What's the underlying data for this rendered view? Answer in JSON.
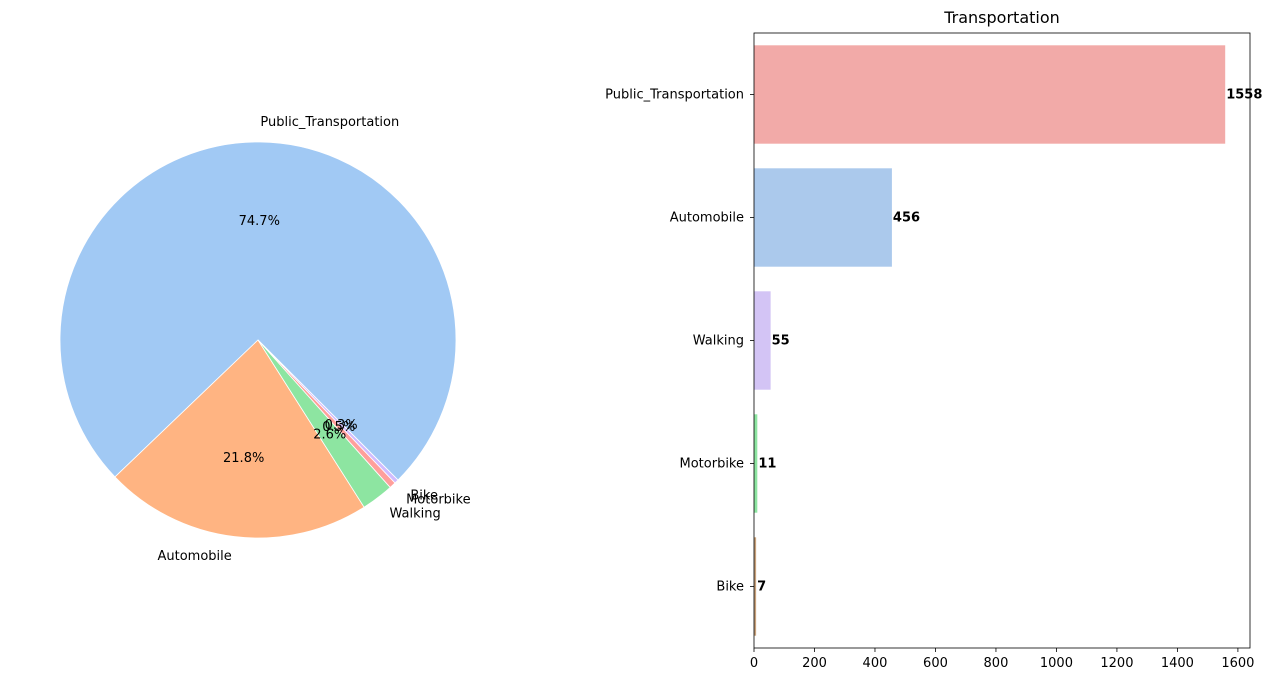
{
  "chart_data": [
    {
      "type": "pie",
      "title": "",
      "labels": [
        "Public_Transportation",
        "Automobile",
        "Walking",
        "Motorbike",
        "Bike"
      ],
      "values": [
        1558,
        456,
        55,
        11,
        7
      ],
      "percent_labels": [
        "74.7%",
        "21.8%",
        "2.6%",
        "0.5%",
        "0.3%"
      ],
      "colors": [
        "#a1c9f4",
        "#ffb482",
        "#8de5a1",
        "#ff9f9b",
        "#d0bbff"
      ],
      "start_angle": 315,
      "direction": "counterclockwise"
    },
    {
      "type": "bar",
      "orientation": "horizontal",
      "title": "Transportation",
      "categories": [
        "Public_Transportation",
        "Automobile",
        "Walking",
        "Motorbike",
        "Bike"
      ],
      "values": [
        1558,
        456,
        55,
        11,
        7
      ],
      "value_labels": [
        "1558",
        "456",
        "55",
        "11",
        "7"
      ],
      "colors": [
        "#f2aaa8",
        "#abc9ec",
        "#d3c4f5",
        "#8de5a1",
        "#c9a27b"
      ],
      "xlim": [
        0,
        1640
      ],
      "xticks": [
        0,
        200,
        400,
        600,
        800,
        1000,
        1200,
        1400,
        1600
      ],
      "xtick_labels": [
        "0",
        "200",
        "400",
        "600",
        "800",
        "1000",
        "1200",
        "1400",
        "1600"
      ],
      "xlabel": "",
      "ylabel": "",
      "grid": false
    }
  ]
}
